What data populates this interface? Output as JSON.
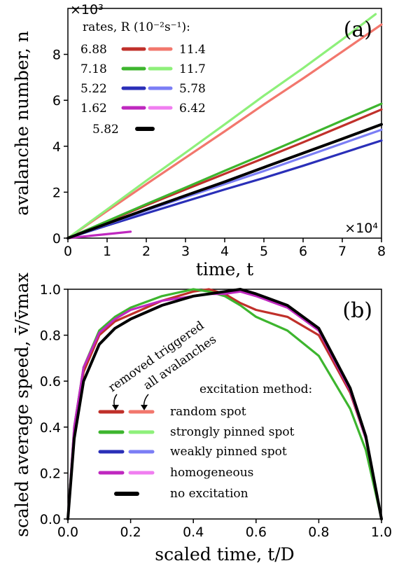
{
  "chart_data": [
    {
      "panel": "(a)",
      "type": "line",
      "xlabel": "time, t",
      "ylabel": "avalanche number, n",
      "x_multiplier": "×10⁴",
      "y_multiplier": "×10³",
      "xlim": [
        0,
        8
      ],
      "ylim": [
        0,
        10
      ],
      "xticks": [
        "0",
        "1",
        "2",
        "3",
        "4",
        "5",
        "6",
        "7",
        "8"
      ],
      "yticks": [
        "0",
        "2",
        "4",
        "6",
        "8"
      ],
      "legend_title": "rates, R (10⁻²s⁻¹):",
      "legend_placement": "top-left",
      "series": [
        {
          "name": "6.88",
          "color": "#c0302a",
          "x": [
            0,
            1,
            2,
            3,
            4,
            5,
            6,
            7,
            8
          ],
          "y": [
            0,
            0.72,
            1.43,
            2.12,
            2.8,
            3.48,
            4.17,
            4.88,
            5.6
          ]
        },
        {
          "name": "11.4",
          "color": "#f2776d",
          "x": [
            0,
            1,
            2,
            3,
            4,
            5,
            6,
            7,
            8
          ],
          "y": [
            0,
            1.18,
            2.35,
            3.5,
            4.65,
            5.82,
            6.95,
            8.12,
            9.3
          ]
        },
        {
          "name": "7.18",
          "color": "#3db52e",
          "x": [
            0,
            1,
            2,
            3,
            4,
            5,
            6,
            7,
            8
          ],
          "y": [
            0,
            0.74,
            1.48,
            2.2,
            2.93,
            3.65,
            4.38,
            5.12,
            5.85
          ]
        },
        {
          "name": "11.7",
          "color": "#8ef07a",
          "x": [
            0,
            1,
            2,
            3,
            4,
            5,
            6,
            7,
            7.85
          ],
          "y": [
            0,
            1.25,
            2.5,
            3.72,
            4.95,
            6.2,
            7.4,
            8.65,
            9.75
          ]
        },
        {
          "name": "5.22",
          "color": "#2a2fb8",
          "x": [
            0,
            1,
            2,
            3,
            4,
            5,
            6,
            7,
            8
          ],
          "y": [
            0,
            0.55,
            1.08,
            1.6,
            2.12,
            2.62,
            3.15,
            3.7,
            4.25
          ]
        },
        {
          "name": "5.78",
          "color": "#7b7ef5",
          "x": [
            0,
            1,
            2,
            3,
            4,
            5,
            6,
            7,
            8
          ],
          "y": [
            0,
            0.6,
            1.2,
            1.78,
            2.35,
            2.92,
            3.52,
            4.12,
            4.72
          ]
        },
        {
          "name": "1.62",
          "color": "#bf28bf",
          "x": [
            0,
            0.4,
            0.8,
            1.2,
            1.6
          ],
          "y": [
            0,
            0.07,
            0.14,
            0.21,
            0.28
          ]
        },
        {
          "name": "6.42",
          "color": "#f07ef0",
          "x": [],
          "y": []
        },
        {
          "name": "5.82",
          "color": "#000000",
          "x": [
            0,
            1,
            2,
            3,
            4,
            5,
            6,
            7,
            8
          ],
          "y": [
            0,
            0.63,
            1.25,
            1.85,
            2.45,
            3.08,
            3.7,
            4.32,
            4.95
          ]
        }
      ]
    },
    {
      "panel": "(b)",
      "type": "line",
      "xlabel": "scaled time, t/D",
      "ylabel": "scaled average speed, v̄/v̄max",
      "xlim": [
        0,
        1
      ],
      "ylim": [
        0,
        1
      ],
      "xticks": [
        "0.0",
        "0.2",
        "0.4",
        "0.6",
        "0.8",
        "1.0"
      ],
      "yticks": [
        "0.0",
        "0.2",
        "0.4",
        "0.6",
        "0.8",
        "1.0"
      ],
      "legend_title": "excitation method:",
      "legend_placement": "bottom-left",
      "legend_entries": [
        "random spot",
        "strongly pinned spot",
        "weakly pinned spot",
        "homogeneous",
        "no excitation"
      ],
      "annotations": [
        "removed triggered",
        "all avalanches"
      ],
      "series": [
        {
          "name": "random spot",
          "color": "#c0302a",
          "x": [
            0,
            0.02,
            0.05,
            0.1,
            0.15,
            0.2,
            0.3,
            0.4,
            0.45,
            0.5,
            0.55,
            0.6,
            0.7,
            0.8,
            0.9,
            0.95,
            1.0
          ],
          "y": [
            0,
            0.38,
            0.64,
            0.8,
            0.86,
            0.89,
            0.95,
            0.99,
            1.0,
            0.98,
            0.94,
            0.91,
            0.88,
            0.8,
            0.55,
            0.35,
            0
          ]
        },
        {
          "name": "strongly pinned spot",
          "color": "#3db52e",
          "x": [
            0,
            0.02,
            0.05,
            0.1,
            0.15,
            0.2,
            0.3,
            0.4,
            0.45,
            0.5,
            0.55,
            0.6,
            0.7,
            0.8,
            0.9,
            0.95,
            1.0
          ],
          "y": [
            0,
            0.4,
            0.66,
            0.82,
            0.88,
            0.92,
            0.97,
            1.0,
            0.99,
            0.97,
            0.93,
            0.88,
            0.82,
            0.71,
            0.48,
            0.3,
            0
          ]
        },
        {
          "name": "weakly pinned spot",
          "color": "#2a2fb8",
          "x": [],
          "y": []
        },
        {
          "name": "homogeneous",
          "color": "#bf28bf",
          "x": [
            0,
            0.02,
            0.05,
            0.1,
            0.15,
            0.2,
            0.3,
            0.4,
            0.45,
            0.5,
            0.55,
            0.6,
            0.7,
            0.8,
            0.9,
            0.95,
            1.0
          ],
          "y": [
            0,
            0.4,
            0.66,
            0.81,
            0.87,
            0.91,
            0.95,
            0.97,
            0.98,
            0.98,
            0.99,
            0.97,
            0.92,
            0.82,
            0.56,
            0.35,
            0
          ]
        },
        {
          "name": "no excitation",
          "color": "#000000",
          "x": [
            0,
            0.02,
            0.05,
            0.1,
            0.15,
            0.2,
            0.3,
            0.4,
            0.45,
            0.5,
            0.55,
            0.6,
            0.7,
            0.8,
            0.9,
            0.95,
            1.0
          ],
          "y": [
            0,
            0.35,
            0.6,
            0.76,
            0.83,
            0.87,
            0.93,
            0.97,
            0.98,
            0.99,
            1.0,
            0.98,
            0.93,
            0.83,
            0.57,
            0.36,
            0
          ]
        }
      ]
    }
  ]
}
